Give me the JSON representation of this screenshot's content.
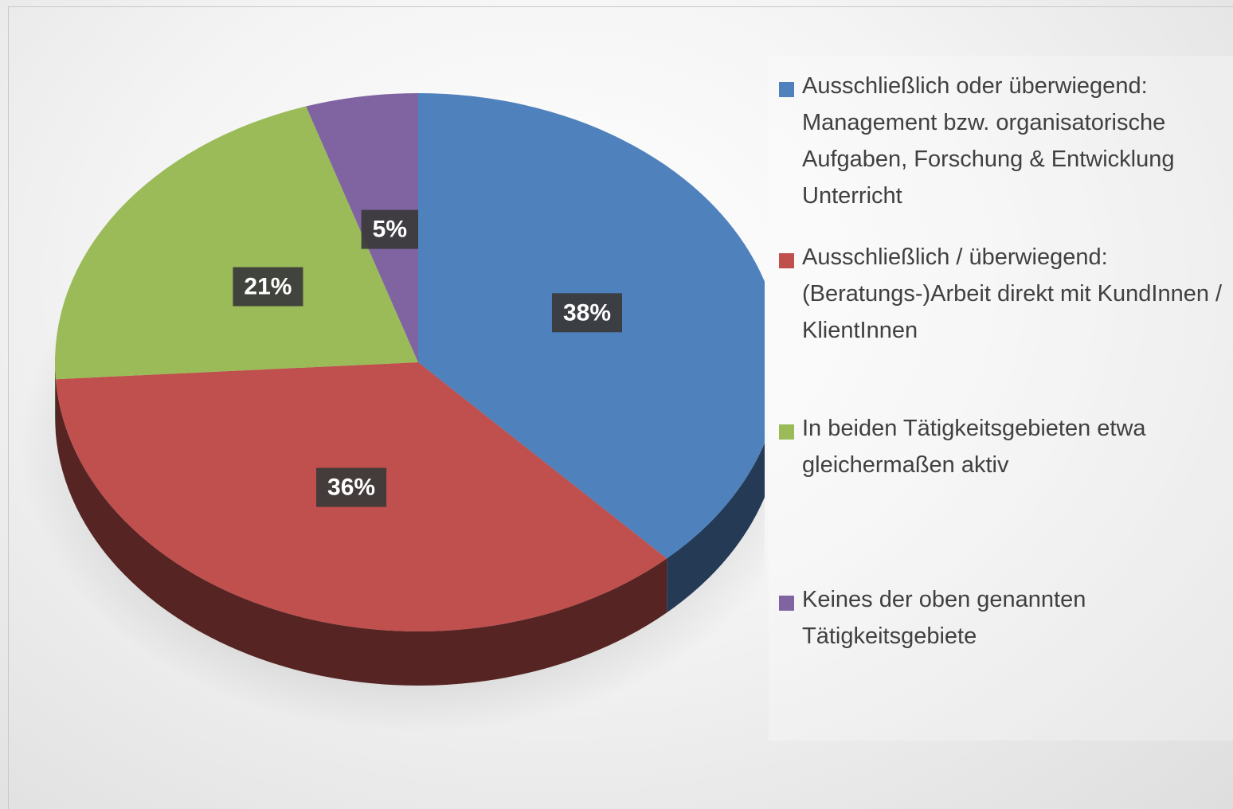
{
  "chart_data": {
    "type": "pie",
    "categories": [
      "Ausschließlich oder überwiegend: Management bzw. organisatorische Aufgaben, Forschung & Entwicklung Unterricht",
      "Ausschließlich / überwiegend: (Beratungs-)Arbeit direkt mit KundInnen / KlientInnen",
      "In beiden Tätigkeitsgebieten etwa gleichermaßen aktiv",
      "Keines der oben genannten Tätigkeitsgebiete"
    ],
    "values": [
      38,
      36,
      21,
      5
    ],
    "value_labels": [
      "38%",
      "36%",
      "21%",
      "5%"
    ],
    "colors": [
      "#4f81bd",
      "#c0504d",
      "#9bbb59",
      "#8064a2"
    ],
    "legend": "right"
  }
}
